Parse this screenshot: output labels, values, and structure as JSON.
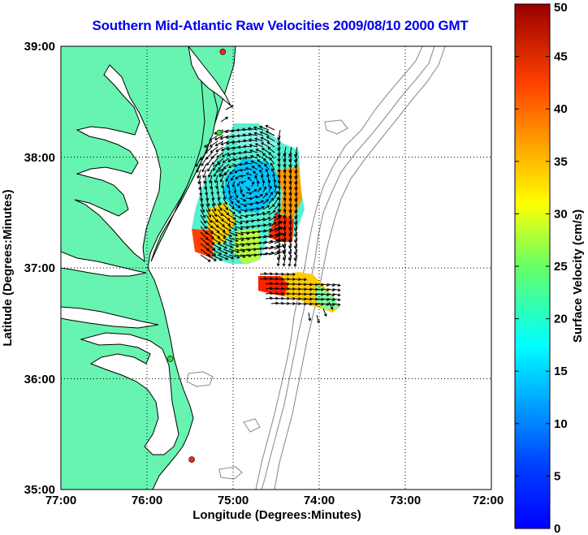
{
  "title": "Southern Mid-Atlantic Raw Velocities 2009/08/10 2000 GMT",
  "x_axis": {
    "label": "Longitude (Degrees:Minutes)",
    "ticks": [
      "77:00",
      "76:00",
      "75:00",
      "74:00",
      "73:00",
      "72:00"
    ],
    "range": [
      -77,
      -72
    ]
  },
  "y_axis": {
    "label": "Latitude (Degrees:Minutes)",
    "ticks": [
      "39:00",
      "38:00",
      "37:00",
      "36:00",
      "35:00"
    ],
    "range": [
      35,
      39
    ]
  },
  "colorbar": {
    "label": "Surface Velocity (cm/s)",
    "ticks": [
      "50",
      "45",
      "40",
      "35",
      "30",
      "25",
      "20",
      "15",
      "10",
      "5",
      "0"
    ],
    "range": [
      0,
      50
    ],
    "colormap": "jet"
  },
  "colors": {
    "land": "#66f4b0",
    "water": "#ffffff",
    "coastline": "#000000",
    "bathymetry": "#909090",
    "title": "#0000ee",
    "arrows": "#000000"
  },
  "grid": "dotted",
  "stations": [
    {
      "lon": -75.12,
      "lat": 38.95,
      "color": "#ff2020"
    },
    {
      "lon": -75.16,
      "lat": 38.22,
      "color": "#30e030"
    },
    {
      "lon": -75.73,
      "lat": 36.18,
      "color": "#30e030"
    },
    {
      "lon": -75.48,
      "lat": 35.27,
      "color": "#ff2020"
    }
  ]
}
